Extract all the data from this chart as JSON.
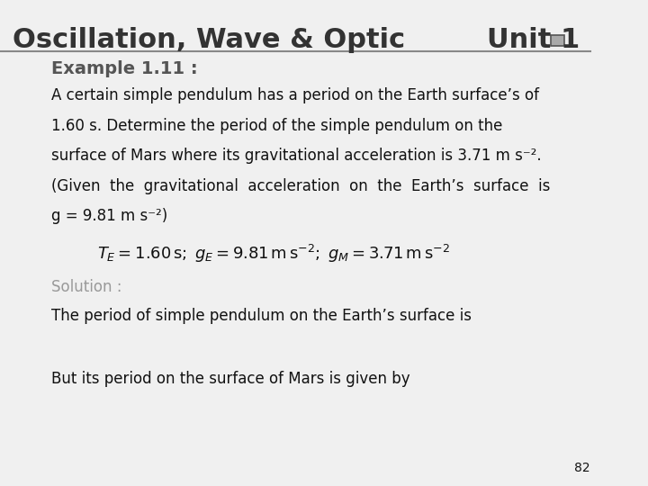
{
  "bg_color": "#f0f0f0",
  "header_text": "Oscillation, Wave & Optic",
  "unit_text": "Unit 1",
  "example_label": "Example 1.11 :",
  "body_lines": [
    "A certain simple pendulum has a period on the Earth surface’s of",
    "1.60 s. Determine the period of the simple pendulum on the",
    "surface of Mars where its gravitational acceleration is 3.71 m s⁻².",
    "(Given  the  gravitational  acceleration  on  the  Earth’s  surface  is",
    "g = 9.81 m s⁻²)"
  ],
  "formula": "$T_E = 1.60\\,\\mathrm{s};\\; g_E = 9.81\\,\\mathrm{m\\,s}^{-2};\\; g_M = 3.71\\,\\mathrm{m\\,s}^{-2}$",
  "solution_label": "Solution :",
  "solution_line": "The period of simple pendulum on the Earth’s surface is",
  "mars_line": "But its period on the surface of Mars is given by",
  "page_number": "82",
  "header_color": "#333333",
  "unit_color": "#333333",
  "example_color": "#555555",
  "body_color": "#111111",
  "solution_label_color": "#999999",
  "line_color": "#888888",
  "header_fontsize": 22,
  "unit_fontsize": 22,
  "example_fontsize": 14,
  "body_fontsize": 12,
  "formula_fontsize": 13,
  "solution_fontsize": 12,
  "page_fontsize": 10
}
